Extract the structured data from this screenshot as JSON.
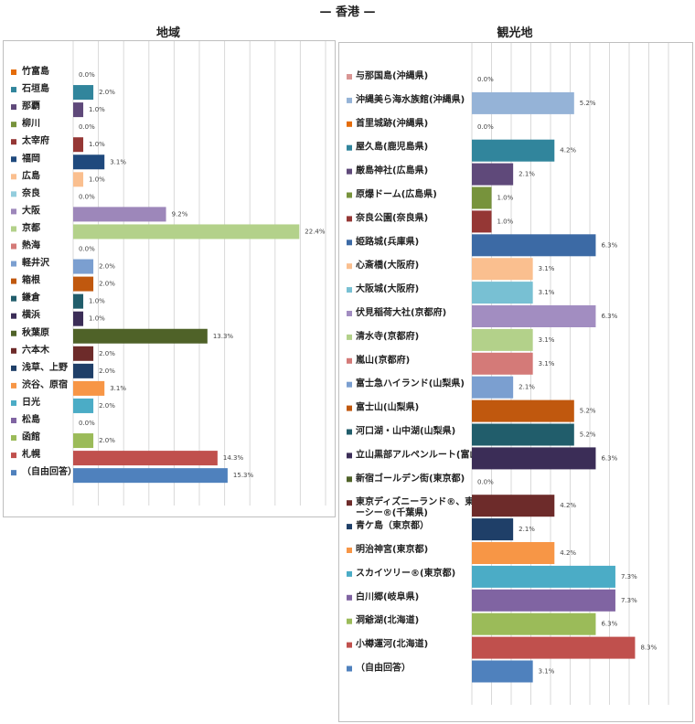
{
  "main_title": "— 香港 —",
  "chart_data": [
    {
      "type": "bar",
      "title": "地域",
      "categories": [
        "竹富島",
        "石垣島",
        "那覇",
        "柳川",
        "太宰府",
        "福岡",
        "広島",
        "奈良",
        "大阪",
        "京都",
        "熱海",
        "軽井沢",
        "箱根",
        "鎌倉",
        "横浜",
        "秋葉原",
        "六本木",
        "浅草、上野",
        "渋谷、原宿",
        "日光",
        "松島",
        "函館",
        "札幌",
        "（自由回答）"
      ],
      "values": [
        0.0,
        2.0,
        1.0,
        0.0,
        1.0,
        3.1,
        1.0,
        0.0,
        9.2,
        22.4,
        0.0,
        2.0,
        2.0,
        1.0,
        1.0,
        13.3,
        2.0,
        2.0,
        3.1,
        2.0,
        0.0,
        2.0,
        14.3,
        15.3
      ],
      "labels": [
        "0.0%",
        "2.0%",
        "1.0%",
        "0.0%",
        "1.0%",
        "3.1%",
        "1.0%",
        "0.0%",
        "9.2%",
        "22.4%",
        "0.0%",
        "2.0%",
        "2.0%",
        "1.0%",
        "1.0%",
        "13.3%",
        "2.0%",
        "2.0%",
        "3.1%",
        "2.0%",
        "0.0%",
        "2.0%",
        "14.3%",
        "15.3%"
      ],
      "colors": [
        "#e46c0a",
        "#31859c",
        "#5f497a",
        "#77933c",
        "#953735",
        "#1f497d",
        "#fabf8f",
        "#93cddd",
        "#9d87ba",
        "#b3d18a",
        "#d47a78",
        "#7b9fd0",
        "#c0580e",
        "#215d6b",
        "#3b2d57",
        "#4f6228",
        "#6d2b2a",
        "#1f3f68",
        "#f79646",
        "#4bacc6",
        "#8064a2",
        "#9bbb59",
        "#c0504d",
        "#4f81bd"
      ],
      "xlim": [
        0,
        25
      ]
    },
    {
      "type": "bar",
      "title": "観光地",
      "categories": [
        "与那国島(沖縄県)",
        "沖縄美ら海水族館(沖縄県)",
        "首里城跡(沖縄県)",
        "屋久島(鹿児島県)",
        "厳島神社(広島県)",
        "原爆ドーム(広島県)",
        "奈良公園(奈良県)",
        "姫路城(兵庫県)",
        "心斎橋(大阪府)",
        "大阪城(大阪府)",
        "伏見稲荷大社(京都府)",
        "清水寺(京都府)",
        "嵐山(京都府)",
        "富士急ハイランド(山梨県)",
        "富士山(山梨県)",
        "河口湖・山中湖(山梨県)",
        "立山黒部アルペンルート(富山県)",
        "新宿ゴールデン街(東京都)",
        "東京ディズニーランド®、東京ディズニーシー®(千葉県)",
        "青ケ島（東京都）",
        "明治神宮(東京都)",
        "スカイツリー®(東京都)",
        "白川郷(岐阜県)",
        "洞爺湖(北海道)",
        "小樽運河(北海道)",
        "（自由回答）"
      ],
      "values": [
        0.0,
        5.2,
        0.0,
        4.2,
        2.1,
        1.0,
        1.0,
        6.3,
        3.1,
        3.1,
        6.3,
        3.1,
        3.1,
        2.1,
        5.2,
        5.2,
        6.3,
        0.0,
        4.2,
        2.1,
        4.2,
        7.3,
        7.3,
        6.3,
        8.3,
        3.1
      ],
      "labels": [
        "0.0%",
        "5.2%",
        "0.0%",
        "4.2%",
        "2.1%",
        "1.0%",
        "1.0%",
        "6.3%",
        "3.1%",
        "3.1%",
        "6.3%",
        "3.1%",
        "3.1%",
        "2.1%",
        "5.2%",
        "5.2%",
        "6.3%",
        "0.0%",
        "4.2%",
        "2.1%",
        "4.2%",
        "7.3%",
        "7.3%",
        "6.3%",
        "8.3%",
        "3.1%"
      ],
      "colors": [
        "#d99694",
        "#95b3d7",
        "#e46c0a",
        "#31859c",
        "#5f497a",
        "#77933c",
        "#953735",
        "#3c6aa5",
        "#fabf8f",
        "#78c0d3",
        "#a28dc1",
        "#b3d18a",
        "#d47a78",
        "#7b9fd0",
        "#c0580e",
        "#215d6b",
        "#3b2d57",
        "#4f6228",
        "#6d2b2a",
        "#1f3f68",
        "#f79646",
        "#4bacc6",
        "#8064a2",
        "#9bbb59",
        "#c0504d",
        "#4f81bd"
      ],
      "xlim": [
        0,
        10
      ]
    }
  ]
}
